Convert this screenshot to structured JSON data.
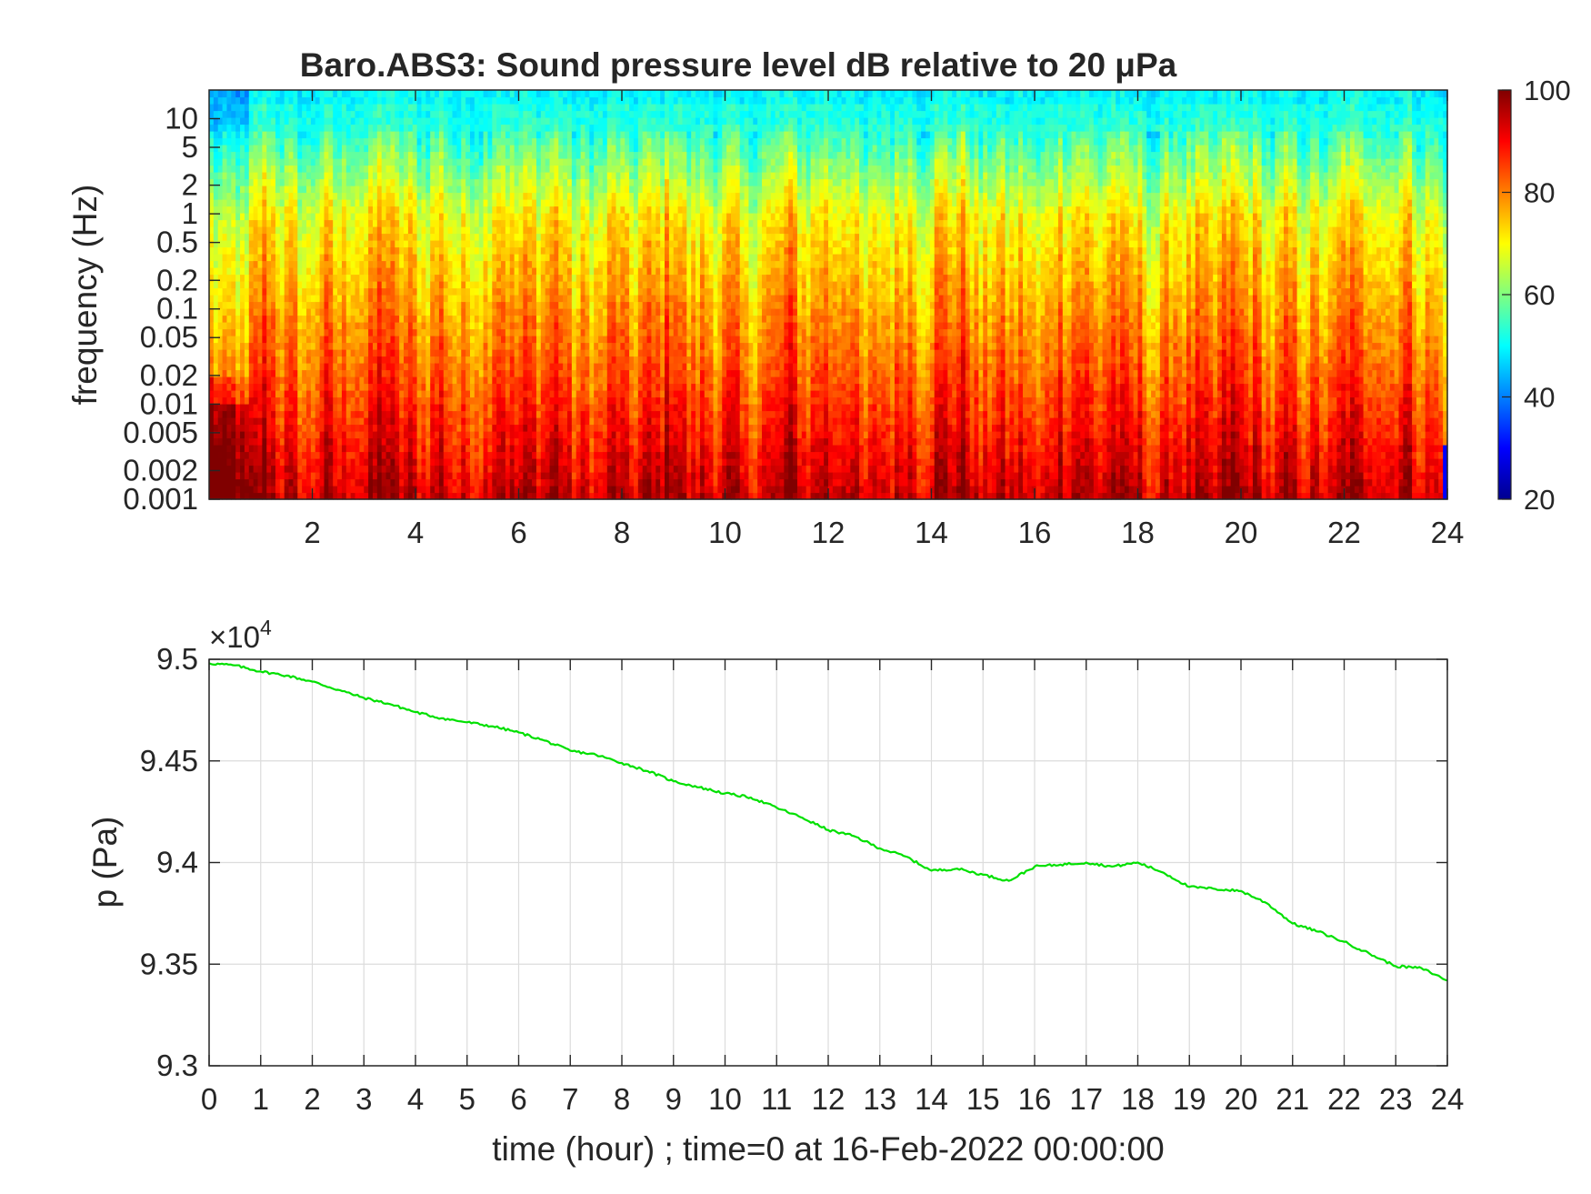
{
  "chart_data": [
    {
      "type": "heatmap",
      "title": "Baro.ABS3: Sound pressure level dB relative to 20 μPa",
      "ylabel": "frequency (Hz)",
      "xlabel": "",
      "x_range": [
        0,
        24
      ],
      "x_ticks": [
        "2",
        "4",
        "6",
        "8",
        "10",
        "12",
        "14",
        "16",
        "18",
        "20",
        "22",
        "24"
      ],
      "y_scale": "log",
      "y_range": [
        0.001,
        20
      ],
      "y_ticks": [
        "10",
        "5",
        "2",
        "1",
        "0.5",
        "0.2",
        "0.1",
        "0.05",
        "0.02",
        "0.01",
        "0.005",
        "0.002",
        "0.001"
      ],
      "colormap": "jet",
      "colorbar": {
        "range": [
          20,
          100
        ],
        "ticks": [
          "100",
          "80",
          "60",
          "40",
          "20"
        ]
      },
      "levels_summary_db": [
        {
          "frequency_hz": 10,
          "level_db": 52
        },
        {
          "frequency_hz": 1,
          "level_db": 70
        },
        {
          "frequency_hz": 0.1,
          "level_db": 78
        },
        {
          "frequency_hz": 0.01,
          "level_db": 86
        },
        {
          "frequency_hz": 0.001,
          "level_db": 95
        }
      ],
      "grid": false
    },
    {
      "type": "line",
      "title": "",
      "xlabel": "time (hour) ; time=0 at 16-Feb-2022 00:00:00",
      "ylabel": "p (Pa)",
      "exponent_label": "×10",
      "exponent_power": "4",
      "xlim": [
        0,
        24
      ],
      "ylim": [
        9.3,
        9.5
      ],
      "x_ticks": [
        "0",
        "1",
        "2",
        "3",
        "4",
        "5",
        "6",
        "7",
        "8",
        "9",
        "10",
        "11",
        "12",
        "13",
        "14",
        "15",
        "16",
        "17",
        "18",
        "19",
        "20",
        "21",
        "22",
        "23",
        "24"
      ],
      "y_ticks": [
        "9.3",
        "9.35",
        "9.4",
        "9.45",
        "9.5"
      ],
      "grid": true,
      "series": [
        {
          "color": "#00e000",
          "x": [
            0,
            0.5,
            1,
            1.5,
            2,
            2.5,
            3,
            3.5,
            4,
            4.5,
            5,
            5.5,
            6,
            6.5,
            7,
            7.5,
            8,
            8.5,
            9,
            9.5,
            10,
            10.5,
            11,
            11.5,
            12,
            12.5,
            13,
            13.5,
            14,
            14.5,
            15,
            15.5,
            16,
            16.5,
            17,
            17.5,
            18,
            18.5,
            19,
            19.5,
            20,
            20.5,
            21,
            21.5,
            22,
            22.5,
            23,
            23.5,
            24
          ],
          "y": [
            9.498,
            9.497,
            9.494,
            9.492,
            9.489,
            9.485,
            9.481,
            9.478,
            9.474,
            9.471,
            9.469,
            9.467,
            9.464,
            9.46,
            9.455,
            9.453,
            9.449,
            9.445,
            9.44,
            9.437,
            9.434,
            9.432,
            9.427,
            9.422,
            9.416,
            9.413,
            9.407,
            9.403,
            9.396,
            9.397,
            9.394,
            9.391,
            9.398,
            9.399,
            9.4,
            9.398,
            9.4,
            9.395,
            9.388,
            9.387,
            9.386,
            9.38,
            9.37,
            9.366,
            9.361,
            9.355,
            9.349,
            9.348,
            9.342
          ]
        }
      ]
    }
  ]
}
